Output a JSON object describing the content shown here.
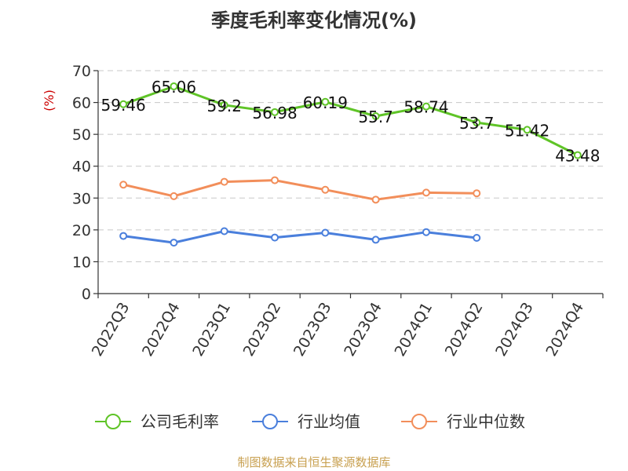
{
  "chart_data": {
    "type": "line",
    "title": "季度毛利率变化情况(%)",
    "ylabel": "(%)",
    "xlabel": "",
    "ylim": [
      0,
      70
    ],
    "yticks": [
      0,
      10,
      20,
      30,
      40,
      50,
      60,
      70
    ],
    "grid": true,
    "legend_position": "bottom",
    "categories": [
      "2022Q3",
      "2022Q4",
      "2023Q1",
      "2023Q2",
      "2023Q3",
      "2023Q4",
      "2024Q1",
      "2024Q2",
      "2024Q3",
      "2024Q4"
    ],
    "series": [
      {
        "name": "公司毛利率",
        "color": "#5fc427",
        "values": [
          59.46,
          65.06,
          59.2,
          56.98,
          60.19,
          55.7,
          58.74,
          53.7,
          51.42,
          43.48
        ],
        "labels": [
          "59.46",
          "65.06",
          "59.2",
          "56.98",
          "60.19",
          "55.7",
          "58.74",
          "53.7",
          "51.42",
          "43.48"
        ]
      },
      {
        "name": "行业均值",
        "color": "#4a7fdc",
        "values": [
          18.1,
          16.0,
          19.6,
          17.6,
          19.1,
          16.9,
          19.3,
          17.5,
          null,
          null
        ]
      },
      {
        "name": "行业中位数",
        "color": "#f28e5a",
        "values": [
          34.2,
          30.6,
          35.1,
          35.6,
          32.6,
          29.5,
          31.7,
          31.5,
          null,
          null
        ]
      }
    ]
  },
  "source": "制图数据来自恒生聚源数据库"
}
